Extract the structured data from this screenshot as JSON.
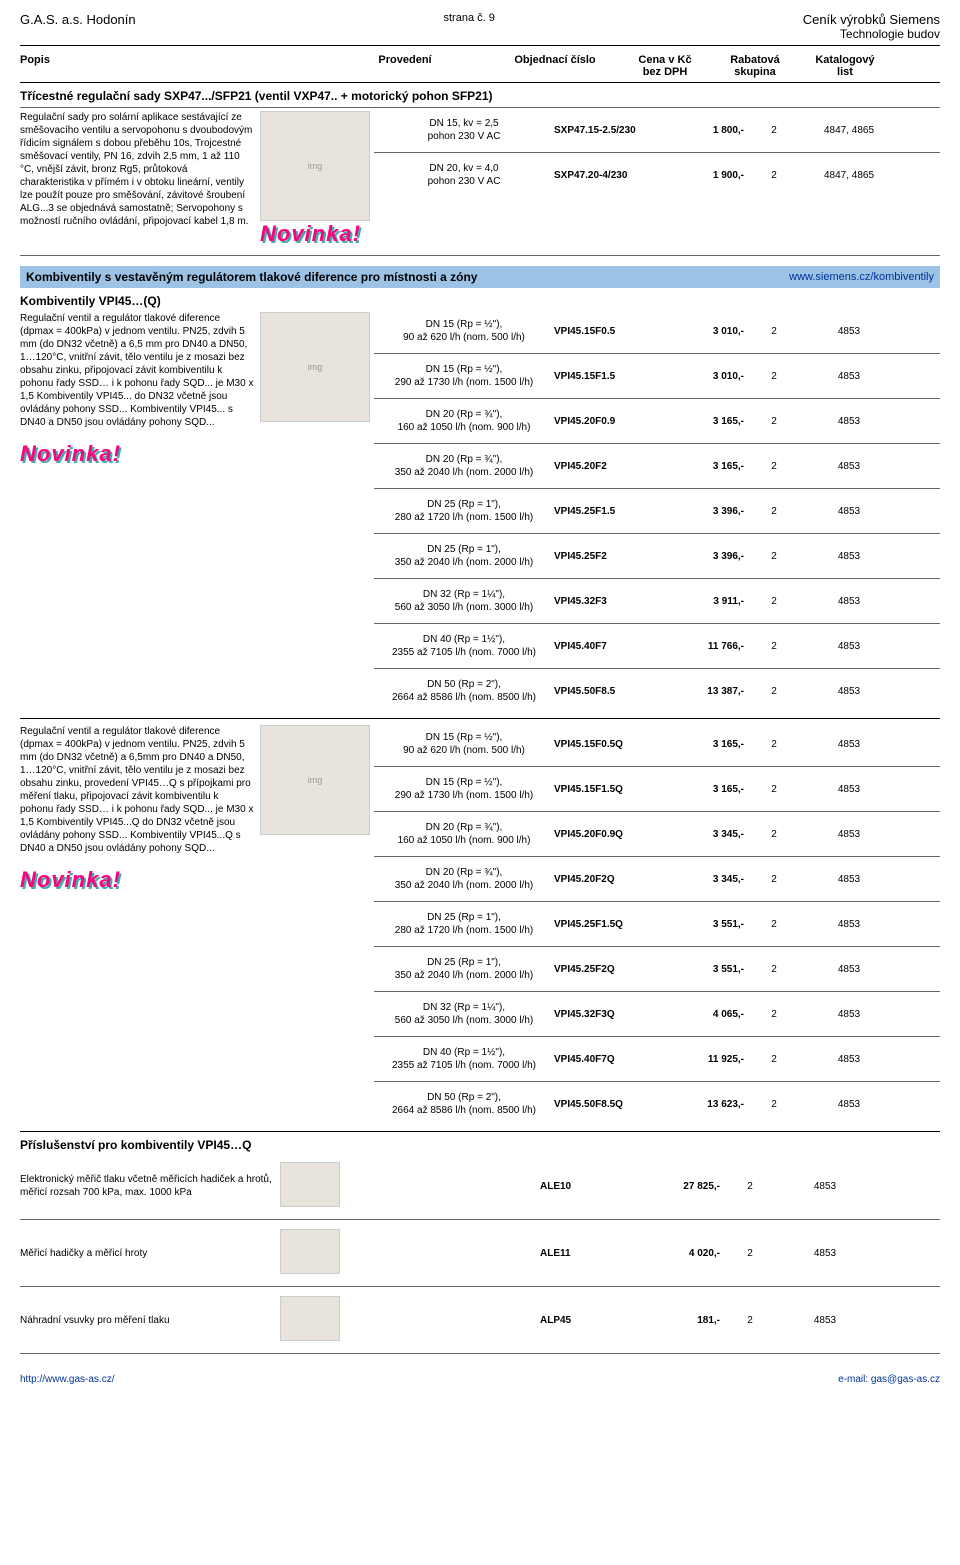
{
  "header": {
    "company": "G.A.S. a.s. Hodonín",
    "page": "strana č. 9",
    "brand_line1": "Ceník výrobků Siemens",
    "brand_line2": "Technologie budov"
  },
  "columns": {
    "c1": "Popis",
    "c2": "Provedení",
    "c3": "Objednací číslo",
    "c4a": "Cena v Kč",
    "c4b": "bez DPH",
    "c5a": "Rabatová",
    "c5b": "skupina",
    "c6a": "Katalogový",
    "c6b": "list"
  },
  "section1": {
    "title": "Třícestné regulační sady SXP47.../SFP21 (ventil VXP47.. + motorický pohon SFP21)",
    "desc": "Regulační sady pro solární aplikace sestávající ze směšovacího ventilu a servopohonu s dvoubodovým řídicím signálem s dobou přeběhu 10s, Trojcestné směšovací ventily, PN 16, zdvih 2,5 mm, 1 až 110 °C, vnější závit, bronz Rg5, průtoková charakteristika v přímém i v obtoku lineární, ventily lze použít pouze pro směšování, závitové šroubení ALG...3 se objednává samostatně; Servopohony s možností ručního ovládání, připojovací kabel 1,8 m.",
    "rows": [
      {
        "spec": "DN 15, kv = 2,5\npohon 230 V AC",
        "code": "SXP47.15-2.5/230",
        "price": "1 800,-",
        "group": "2",
        "cat": "4847, 4865"
      },
      {
        "spec": "DN 20, kv = 4,0\npohon 230 V AC",
        "code": "SXP47.20-4/230",
        "price": "1 900,-",
        "group": "2",
        "cat": "4847, 4865"
      }
    ]
  },
  "section2": {
    "bar_title": "Kombiventily s vestavěným regulátorem tlakové diference pro místnosti a zóny",
    "bar_link": "www.siemens.cz/kombiventily",
    "subtitle": "Kombiventily VPI45…(Q)",
    "desc1": "Regulační ventil a regulátor tlakové diference (dpmax = 400kPa) v jednom ventilu. PN25, zdvih 5 mm (do DN32 včetně) a 6,5 mm pro DN40 a DN50, 1…120°C, vnitřní závit, tělo ventilu je z mosazi bez obsahu zinku, připojovací závit kombiventilu k pohonu řady SSD… i k pohonu řady SQD... je M30 x 1,5 Kombiventily VPI45... do DN32 včetně jsou ovládány pohony SSD... Kombiventily VPI45... s DN40 a DN50 jsou ovládány pohony SQD...",
    "rows1": [
      {
        "spec": "DN 15 (Rp = ½\"),\n90 až 620 l/h (nom. 500 l/h)",
        "code": "VPI45.15F0.5",
        "price": "3 010,-",
        "group": "2",
        "cat": "4853"
      },
      {
        "spec": "DN 15 (Rp = ½\"),\n290 až 1730 l/h (nom. 1500 l/h)",
        "code": "VPI45.15F1.5",
        "price": "3 010,-",
        "group": "2",
        "cat": "4853"
      },
      {
        "spec": "DN 20 (Rp = ¾\"),\n160 až 1050 l/h (nom. 900 l/h)",
        "code": "VPI45.20F0.9",
        "price": "3 165,-",
        "group": "2",
        "cat": "4853"
      },
      {
        "spec": "DN 20 (Rp = ¾\"),\n350 až 2040 l/h (nom. 2000 l/h)",
        "code": "VPI45.20F2",
        "price": "3 165,-",
        "group": "2",
        "cat": "4853"
      },
      {
        "spec": "DN 25 (Rp = 1\"),\n280 až 1720 l/h (nom. 1500 l/h)",
        "code": "VPI45.25F1.5",
        "price": "3 396,-",
        "group": "2",
        "cat": "4853"
      },
      {
        "spec": "DN 25 (Rp = 1\"),\n350 až 2040 l/h (nom. 2000 l/h)",
        "code": "VPI45.25F2",
        "price": "3 396,-",
        "group": "2",
        "cat": "4853"
      },
      {
        "spec": "DN 32 (Rp = 1¼\"),\n560 až 3050 l/h (nom. 3000 l/h)",
        "code": "VPI45.32F3",
        "price": "3 911,-",
        "group": "2",
        "cat": "4853"
      },
      {
        "spec": "DN 40 (Rp = 1½\"),\n2355 až 7105 l/h (nom. 7000 l/h)",
        "code": "VPI45.40F7",
        "price": "11 766,-",
        "group": "2",
        "cat": "4853"
      },
      {
        "spec": "DN 50 (Rp = 2\"),\n2664 až 8586 l/h (nom. 8500 l/h)",
        "code": "VPI45.50F8.5",
        "price": "13 387,-",
        "group": "2",
        "cat": "4853"
      }
    ],
    "desc2": "Regulační ventil a regulátor tlakové diference (dpmax = 400kPa) v jednom ventilu. PN25, zdvih 5 mm (do DN32 včetně) a 6,5mm pro DN40 a DN50, 1…120°C, vnitřní závit, tělo ventilu je z mosazi bez obsahu zinku, provedení VPI45…Q s přípojkami pro měření tlaku, připojovací závit kombiventilu k pohonu řady SSD… i k pohonu řady SQD... je M30 x 1,5 Kombiventily VPI45...Q do DN32 včetně jsou ovládány pohony SSD... Kombiventily VPI45...Q s DN40 a DN50 jsou ovládány pohony SQD...",
    "rows2": [
      {
        "spec": "DN 15 (Rp = ½\"),\n90 až 620 l/h (nom. 500 l/h)",
        "code": "VPI45.15F0.5Q",
        "price": "3 165,-",
        "group": "2",
        "cat": "4853"
      },
      {
        "spec": "DN 15 (Rp = ½\"),\n290 až 1730 l/h (nom. 1500 l/h)",
        "code": "VPI45.15F1.5Q",
        "price": "3 165,-",
        "group": "2",
        "cat": "4853"
      },
      {
        "spec": "DN 20 (Rp = ¾\"),\n160 až 1050 l/h (nom. 900 l/h)",
        "code": "VPI45.20F0.9Q",
        "price": "3 345,-",
        "group": "2",
        "cat": "4853"
      },
      {
        "spec": "DN 20 (Rp = ¾\"),\n350 až 2040 l/h (nom. 2000 l/h)",
        "code": "VPI45.20F2Q",
        "price": "3 345,-",
        "group": "2",
        "cat": "4853"
      },
      {
        "spec": "DN 25 (Rp = 1\"),\n280 až 1720 l/h (nom. 1500 l/h)",
        "code": "VPI45.25F1.5Q",
        "price": "3 551,-",
        "group": "2",
        "cat": "4853"
      },
      {
        "spec": "DN 25 (Rp = 1\"),\n350 až 2040 l/h (nom. 2000 l/h)",
        "code": "VPI45.25F2Q",
        "price": "3 551,-",
        "group": "2",
        "cat": "4853"
      },
      {
        "spec": "DN 32 (Rp = 1¼\"),\n560 až 3050 l/h (nom. 3000 l/h)",
        "code": "VPI45.32F3Q",
        "price": "4 065,-",
        "group": "2",
        "cat": "4853"
      },
      {
        "spec": "DN 40 (Rp = 1½\"),\n2355 až 7105 l/h (nom. 7000 l/h)",
        "code": "VPI45.40F7Q",
        "price": "11 925,-",
        "group": "2",
        "cat": "4853"
      },
      {
        "spec": "DN 50 (Rp = 2\"),\n2664 až 8586 l/h (nom. 8500 l/h)",
        "code": "VPI45.50F8.5Q",
        "price": "13 623,-",
        "group": "2",
        "cat": "4853"
      }
    ]
  },
  "accessories": {
    "title": "Příslušenství pro kombiventily VPI45…Q",
    "items": [
      {
        "desc": "Elektronický měřič tlaku včetně měřicích hadiček a hrotů, měřicí rozsah 700 kPa, max. 1000 kPa",
        "code": "ALE10",
        "price": "27 825,-",
        "group": "2",
        "cat": "4853"
      },
      {
        "desc": "Měřicí hadičky a měřicí hroty",
        "code": "ALE11",
        "price": "4 020,-",
        "group": "2",
        "cat": "4853"
      },
      {
        "desc": "Náhradní vsuvky pro měření tlaku",
        "code": "ALP45",
        "price": "181,-",
        "group": "2",
        "cat": "4853"
      }
    ]
  },
  "footer": {
    "left": "http://www.gas-as.cz/",
    "right": "e-mail: gas@gas-as.cz"
  },
  "novinka_label": "Novinka!"
}
